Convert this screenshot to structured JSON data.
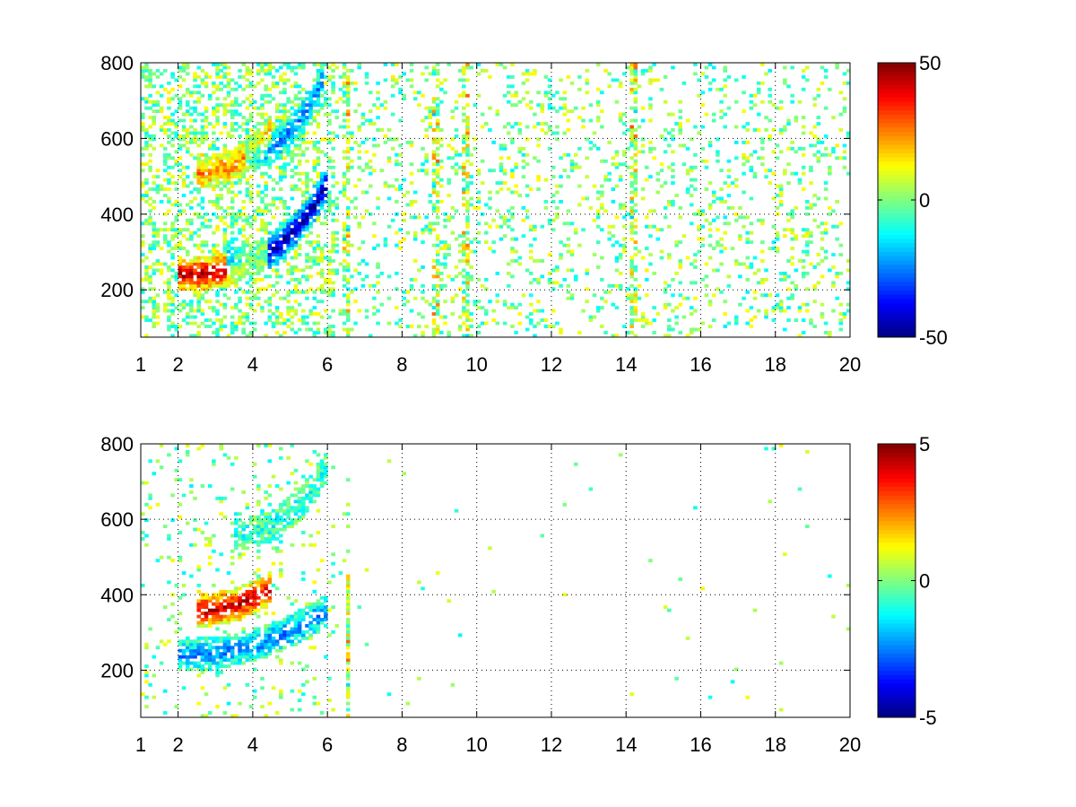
{
  "chart_data": [
    {
      "type": "heatmap",
      "title": "",
      "xlabel": "",
      "ylabel": "",
      "xlim": [
        1,
        20
      ],
      "ylim": [
        75,
        800
      ],
      "xticks": [
        1,
        2,
        4,
        6,
        8,
        10,
        12,
        14,
        16,
        18,
        20
      ],
      "yticks": [
        200,
        400,
        600,
        800
      ],
      "grid": true,
      "colormap": "jet",
      "clim": [
        -50,
        50
      ],
      "colorbar_ticks": [
        -50,
        0,
        50
      ],
      "features": [
        {
          "description": "positive band",
          "sign": "positive",
          "x_range": [
            2.0,
            4.4
          ],
          "y_start": 240,
          "y_end": 300,
          "magnitude": 45
        },
        {
          "description": "negative band",
          "sign": "negative",
          "x_range": [
            3.3,
            6.0
          ],
          "y_start": 270,
          "y_end": 480,
          "magnitude": 48
        },
        {
          "description": "upper positive band",
          "sign": "positive",
          "x_range": [
            2.5,
            4.5
          ],
          "y_start": 510,
          "y_end": 620,
          "magnitude": 25
        },
        {
          "description": "upper negative band",
          "sign": "negative",
          "x_range": [
            3.8,
            5.9
          ],
          "y_start": 560,
          "y_end": 760,
          "magnitude": 25
        }
      ],
      "vertical_streaks": [
        6.5,
        8.9,
        9.7,
        14.2
      ]
    },
    {
      "type": "heatmap",
      "title": "",
      "xlabel": "",
      "ylabel": "",
      "xlim": [
        1,
        20
      ],
      "ylim": [
        75,
        800
      ],
      "xticks": [
        1,
        2,
        4,
        6,
        8,
        10,
        12,
        14,
        16,
        18,
        20
      ],
      "yticks": [
        200,
        400,
        600,
        800
      ],
      "grid": true,
      "colormap": "jet",
      "clim": [
        -5,
        5
      ],
      "colorbar_ticks": [
        -5,
        0,
        5
      ],
      "features": [
        {
          "description": "lower band",
          "sign": "negative",
          "x_range": [
            2.0,
            6.0
          ],
          "y_start": 240,
          "y_end": 360,
          "magnitude": 2.5
        },
        {
          "description": "upper band",
          "sign": "negative",
          "x_range": [
            3.5,
            6.0
          ],
          "y_start": 560,
          "y_end": 740,
          "magnitude": 1.0
        },
        {
          "description": "positive patch",
          "sign": "positive",
          "x_range": [
            2.5,
            4.5
          ],
          "y_start": 360,
          "y_end": 420,
          "magnitude": 4.5
        }
      ],
      "vertical_streaks": [
        6.55
      ]
    }
  ]
}
